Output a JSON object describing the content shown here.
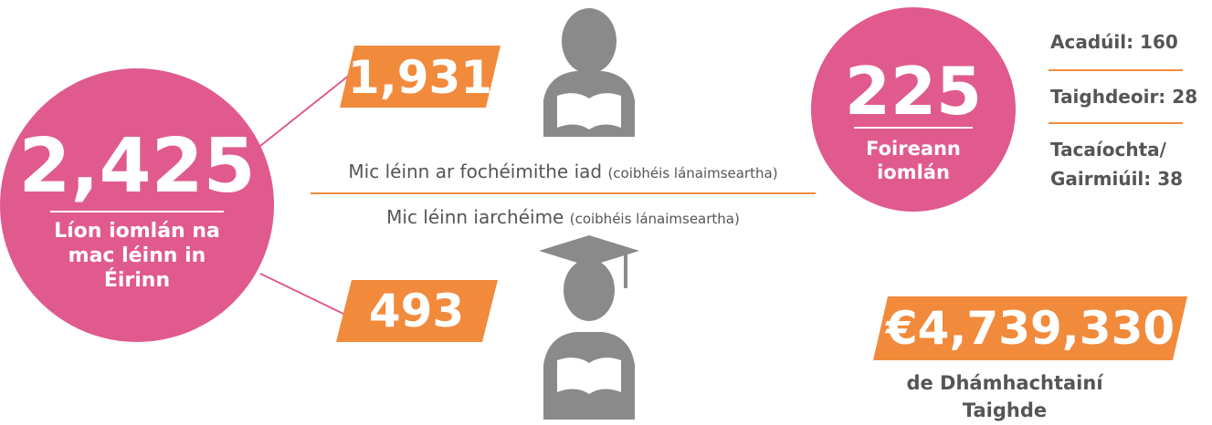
{
  "students": {
    "total": "2,425",
    "total_label": "Líon iomlán na mac léinn in Éirinn",
    "undergraduate": {
      "value": "1,931",
      "label": "Mic léinn ar fochéimithe iad",
      "note": "(coibhéis lánaimseartha)"
    },
    "postgraduate": {
      "value": "493",
      "label": "Mic léinn iarchéime",
      "note": "(coibhéis lánaimseartha)"
    }
  },
  "staff": {
    "total": "225",
    "total_label": "Foireann iomlán",
    "breakdown": [
      "Acadúil: 160",
      "Taighdeoir: 28",
      "Tacaíochta/ Gairmiúil: 38"
    ]
  },
  "research": {
    "value": "€4,739,330",
    "label": "de Dhámhachtainí Taighde"
  }
}
